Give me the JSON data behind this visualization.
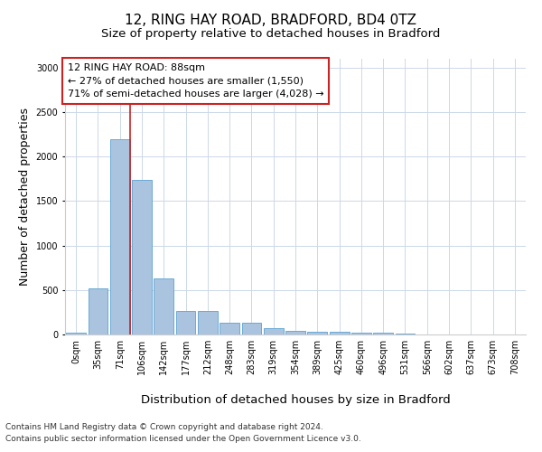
{
  "title_line1": "12, RING HAY ROAD, BRADFORD, BD4 0TZ",
  "title_line2": "Size of property relative to detached houses in Bradford",
  "xlabel": "Distribution of detached houses by size in Bradford",
  "ylabel": "Number of detached properties",
  "annotation_line1": "12 RING HAY ROAD: 88sqm",
  "annotation_line2": "← 27% of detached houses are smaller (1,550)",
  "annotation_line3": "71% of semi-detached houses are larger (4,028) →",
  "footer_line1": "Contains HM Land Registry data © Crown copyright and database right 2024.",
  "footer_line2": "Contains public sector information licensed under the Open Government Licence v3.0.",
  "bar_color": "#aac4e0",
  "bar_edge_color": "#6aaad4",
  "redline_color": "#cc2222",
  "annotation_box_edgecolor": "#cc2222",
  "background_color": "#ffffff",
  "grid_color": "#ccd8e8",
  "categories": [
    "0sqm",
    "35sqm",
    "71sqm",
    "106sqm",
    "142sqm",
    "177sqm",
    "212sqm",
    "248sqm",
    "283sqm",
    "319sqm",
    "354sqm",
    "389sqm",
    "425sqm",
    "460sqm",
    "496sqm",
    "531sqm",
    "566sqm",
    "602sqm",
    "637sqm",
    "673sqm",
    "708sqm"
  ],
  "values": [
    25,
    520,
    2200,
    1740,
    630,
    260,
    260,
    135,
    135,
    70,
    45,
    30,
    30,
    22,
    22,
    15,
    4,
    4,
    4,
    2,
    2
  ],
  "ylim": [
    0,
    3100
  ],
  "yticks": [
    0,
    500,
    1000,
    1500,
    2000,
    2500,
    3000
  ],
  "redline_bin": 2,
  "title_fontsize": 11,
  "subtitle_fontsize": 9.5,
  "ylabel_fontsize": 9,
  "xlabel_fontsize": 9.5,
  "tick_fontsize": 7,
  "annotation_fontsize": 8,
  "footer_fontsize": 6.5
}
